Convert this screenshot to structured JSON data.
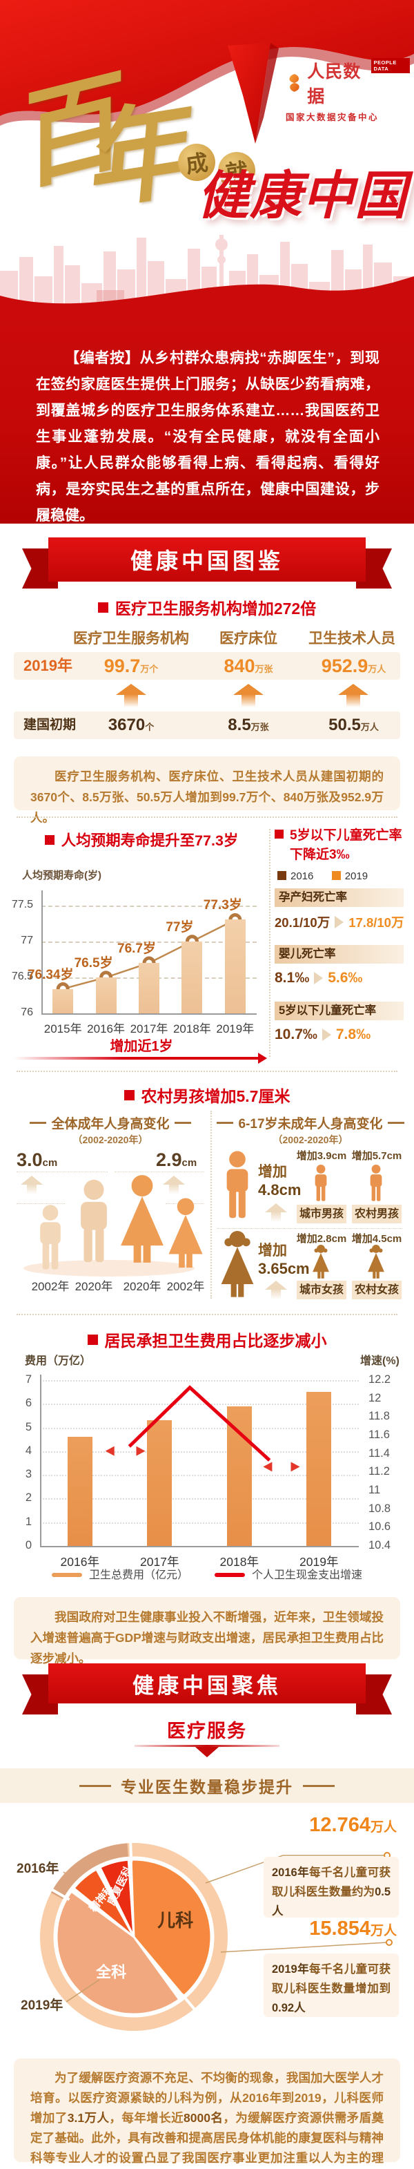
{
  "brand": {
    "logo_cn": "人民数据",
    "logo_en": "PEOPLE DATA",
    "logo_sub": "国家大数据灾备中心"
  },
  "hero": {
    "cal_char1": "百",
    "cal_char2": "年",
    "coin1": "成",
    "coin2": "就",
    "title": "健康中国"
  },
  "editor_note": "【编者按】从乡村群众患病找“赤脚医生”，到现在签约家庭医生提供上门服务；从缺医少药看病难，到覆盖城乡的医疗卫生服务体系建立……我国医药卫生事业蓬勃发展。“没有全民健康，就没有全面小康。”让人民群众能够看得上病、看得起病、看得好病，是夯实民生之基的重点所在，健康中国建设，步履稳健。",
  "banner1": "健康中国图鉴",
  "banner2": "健康中国聚焦",
  "orgs": {
    "heading": "医疗卫生服务机构增加272倍",
    "columns": [
      "医疗卫生服务机构",
      "医疗床位",
      "卫生技术人员"
    ],
    "rows": [
      {
        "label": "2019年",
        "values": [
          {
            "num": "99.7",
            "unit": "万个"
          },
          {
            "num": "840",
            "unit": "万张"
          },
          {
            "num": "952.9",
            "unit": "万人"
          }
        ]
      },
      {
        "label": "建国初期",
        "values": [
          {
            "num": "3670",
            "unit": "个"
          },
          {
            "num": "8.5",
            "unit": "万张"
          },
          {
            "num": "50.5",
            "unit": "万人"
          }
        ]
      }
    ],
    "note": "医疗卫生服务机构、医疗床位、卫生技术人员从建国初期的3670个、8.5万张、50.5万人增加到99.7万个、840万张及952.9万人。"
  },
  "life": {
    "heading": "人均预期寿命提升至77.3岁",
    "axis_label": "人均预期寿命(岁)",
    "footer": "增加近1岁"
  },
  "mortality": {
    "heading_line1": "5岁以下儿童死亡率",
    "heading_line2": "下降近3‰",
    "legend": [
      "2016",
      "2019"
    ],
    "items": [
      {
        "label": "孕产妇死亡率",
        "from": "20.1/10万",
        "to": "17.8/10万"
      },
      {
        "label": "婴儿死亡率",
        "from": "8.1‰",
        "to": "5.6‰"
      },
      {
        "label": "5岁以下儿童死亡率",
        "from": "10.7‰",
        "to": "7.8‰"
      }
    ]
  },
  "height": {
    "heading": "农村男孩增加5.7厘米",
    "adults": {
      "title": "全体成年人身高变化",
      "period": "（2002-2020年）",
      "male_delta": "3.0",
      "female_delta": "2.9",
      "unit": "cm",
      "years": [
        "2002年",
        "2020年",
        "2020年",
        "2002年"
      ]
    },
    "minors": {
      "title": "6-17岁未成年人身高变化",
      "period": "（2002-2020年）",
      "rows": [
        {
          "word": "增加",
          "value": "4.8cm",
          "items": [
            {
              "delta": "增加3.9cm",
              "label": "城市男孩"
            },
            {
              "delta": "增加5.7cm",
              "label": "农村男孩"
            }
          ]
        },
        {
          "word": "增加",
          "value": "3.65cm",
          "items": [
            {
              "delta": "增加2.8cm",
              "label": "城市女孩"
            },
            {
              "delta": "增加4.5cm",
              "label": "农村女孩"
            }
          ]
        }
      ]
    }
  },
  "cost": {
    "heading": "居民承担卫生费用占比逐步减小",
    "ylabel_left": "费用（万亿）",
    "ylabel_right": "增速(%)",
    "legend": [
      {
        "label": "卫生总费用（亿元）"
      },
      {
        "label": "个人卫生现金支出增速"
      }
    ],
    "note": "我国政府对卫生健康事业投入不断增强，近年来，卫生领域投入增速普遍高于GDP增速与财政支出增速，居民承担卫生费用占比逐步减小。"
  },
  "focus": {
    "subtitle": "医疗服务",
    "band": "专业医生数量稳步提升"
  },
  "doctors": {
    "ring_outer_label": "2016年",
    "ring_inner_label": "2019年",
    "callout_2016": {
      "num": "12.764",
      "unit": "万人",
      "note": [
        {
          "t": "2016年",
          "b": true
        },
        {
          "t": "每千名儿童可获取儿科医生数量约为",
          "b": false
        },
        {
          "t": "0.5人",
          "b": true
        }
      ]
    },
    "callout_2019": {
      "num": "15.854",
      "unit": "万人",
      "note": [
        {
          "t": "2019年",
          "b": true
        },
        {
          "t": "每千名儿童可获取儿科医生数量增加到",
          "b": false
        },
        {
          "t": "0.92人",
          "b": true
        }
      ]
    }
  },
  "closing_note": [
    {
      "t": "为了缓解医疗资源不充足、不均衡的现象，我国加大医学人才培育。以医疗资源紧缺的儿科为例，从2016年到2019，儿科医师增加了",
      "b": false
    },
    {
      "t": "3.1万人",
      "b": true
    },
    {
      "t": "，每年增长近",
      "b": false
    },
    {
      "t": "8000名",
      "b": true
    },
    {
      "t": "，为缓解医疗资源供需矛盾奠定了基础。此外，具有改善和提高居民身体机能的康复医科与精神科等专业人才的设置凸显了我国医疗事业更加注重以人为主的理念。",
      "b": false
    }
  ],
  "chart_data": [
    {
      "type": "line",
      "title": "人均预期寿命提升至77.3岁",
      "ylabel": "人均预期寿命(岁)",
      "categories": [
        "2015年",
        "2016年",
        "2017年",
        "2018年",
        "2019年"
      ],
      "values": [
        76.34,
        76.5,
        76.7,
        77,
        77.3
      ],
      "point_labels": [
        "76.34岁",
        "76.5岁",
        "76.7岁",
        "77岁",
        "77.3岁"
      ],
      "yticks": [
        76,
        76.5,
        77,
        77.5
      ],
      "ylim": [
        76,
        77.65
      ],
      "annotation": "增加近1岁"
    },
    {
      "type": "bar",
      "title": "居民承担卫生费用占比逐步减小",
      "categories": [
        "2016年",
        "2017年",
        "2018年",
        "2019年"
      ],
      "series": [
        {
          "name": "卫生总费用（亿元）",
          "axis": "left",
          "values": [
            4.6,
            5.3,
            5.9,
            6.5
          ]
        },
        {
          "name": "个人卫生现金支出增速",
          "axis": "right",
          "values_estimated": [
            11.5,
            12.1,
            11.7,
            11.3
          ]
        }
      ],
      "line_shape": [
        {
          "x": 0.28,
          "v": 11.48
        },
        {
          "x": 0.47,
          "v": 12.12
        },
        {
          "x": 0.72,
          "v": 11.33
        }
      ],
      "ylabel_left": "费用（万亿）",
      "ylim_left": [
        0,
        7
      ],
      "yticks_left": [
        0,
        1,
        2,
        3,
        4,
        5,
        6,
        7
      ],
      "ylabel_right": "增速(%)",
      "ylim_right": [
        10.4,
        12.2
      ],
      "yticks_right": [
        10.4,
        10.6,
        10.8,
        11,
        11.2,
        11.4,
        11.6,
        11.8,
        12,
        12.2
      ]
    },
    {
      "type": "pie",
      "title": "专业医生数量稳步提升",
      "rings": {
        "outer": "2016年",
        "inner": "2019年"
      },
      "slices": [
        {
          "label": "儿科",
          "pct_est": 40,
          "start": -2,
          "end": 140,
          "color": "#f6893f"
        },
        {
          "label": "全科",
          "pct_est": 45,
          "start": 144,
          "end": 306,
          "color": "#f2a87e"
        },
        {
          "label": "精神科",
          "pct_est": 6,
          "start": 309,
          "end": 331,
          "color": "#f2571f"
        },
        {
          "label": "康复医科",
          "pct_est": 6,
          "start": 334,
          "end": 356,
          "color": "#ea2d12"
        }
      ],
      "totals": [
        {
          "year": "2016年",
          "value": "12.764万人"
        },
        {
          "year": "2019年",
          "value": "15.854万人"
        }
      ]
    }
  ],
  "colors": {
    "primary_red": "#d8000f",
    "ribbon_red": "#cf0c0c",
    "gold": "#c9992e",
    "brown": "#aa6e2c",
    "orange": "#ef8b1f",
    "dark_brown": "#5c3a14",
    "beige": "#fbf1e4",
    "bar_orange": "#e9995b",
    "line_red": "#e60012"
  }
}
